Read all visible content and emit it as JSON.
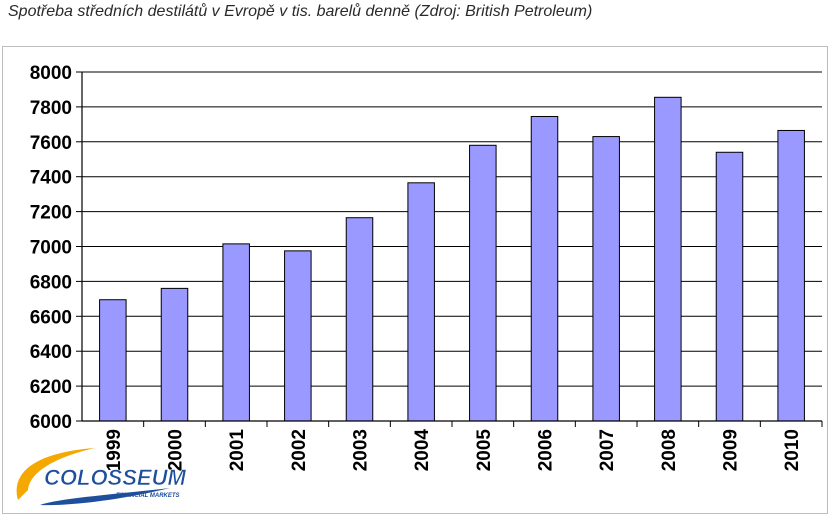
{
  "chart_data": {
    "type": "bar",
    "title": "Spotřeba středních destilátů v Evropě v tis. barelů denně (Zdroj: British Petroleum)",
    "categories": [
      "1999",
      "2000",
      "2001",
      "2002",
      "2003",
      "2004",
      "2005",
      "2006",
      "2007",
      "2008",
      "2009",
      "2010"
    ],
    "values": [
      6695,
      6760,
      7015,
      6975,
      7165,
      7365,
      7580,
      7745,
      7630,
      7855,
      7540,
      7665
    ],
    "ylim": [
      6000,
      8000
    ],
    "yticks": [
      "6000",
      "6200",
      "6400",
      "6600",
      "6800",
      "7000",
      "7200",
      "7400",
      "7600",
      "7800",
      "8000"
    ],
    "grid": true,
    "bar_color": "#9999ff",
    "bar_edge_color": "#000000"
  },
  "logo": {
    "name": "COLOSSEUM",
    "tagline": "FINANCIAL MARKETS",
    "colors": [
      "#f5a800",
      "#1d4f9c"
    ]
  }
}
